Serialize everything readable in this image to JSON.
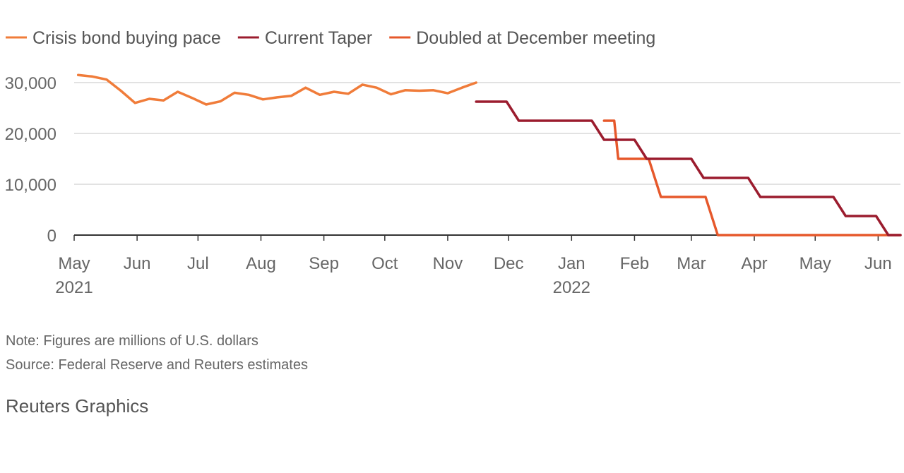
{
  "chart_data": {
    "type": "line",
    "title": "",
    "xlabel": "",
    "ylabel": "",
    "ylim": [
      0,
      30000
    ],
    "yticks": [
      "30,000",
      "20,000",
      "10,000",
      "0"
    ],
    "ytick_values": [
      30000,
      20000,
      10000,
      0
    ],
    "xticks": [
      {
        "month": "May",
        "year": "2021",
        "date": "2021-05-01"
      },
      {
        "month": "Jun",
        "year": "",
        "date": "2021-06-01"
      },
      {
        "month": "Jul",
        "year": "",
        "date": "2021-07-01"
      },
      {
        "month": "Aug",
        "year": "",
        "date": "2021-08-01"
      },
      {
        "month": "Sep",
        "year": "",
        "date": "2021-09-01"
      },
      {
        "month": "Oct",
        "year": "",
        "date": "2021-10-01"
      },
      {
        "month": "Nov",
        "year": "",
        "date": "2021-11-01"
      },
      {
        "month": "Dec",
        "year": "",
        "date": "2021-12-01"
      },
      {
        "month": "Jan",
        "year": "2022",
        "date": "2022-01-01"
      },
      {
        "month": "Feb",
        "year": "",
        "date": "2022-02-01"
      },
      {
        "month": "Mar",
        "year": "",
        "date": "2022-03-01"
      },
      {
        "month": "Apr",
        "year": "",
        "date": "2022-04-01"
      },
      {
        "month": "May",
        "year": "",
        "date": "2022-05-01"
      },
      {
        "month": "Jun",
        "year": "",
        "date": "2022-06-01"
      }
    ],
    "xlim": [
      "2021-05-01",
      "2022-06-12"
    ],
    "grid": true,
    "legend_position": "top-left",
    "series": [
      {
        "name": "Crisis bond buying pace",
        "color": "#f07c3a",
        "step": false,
        "points": [
          [
            "2021-05-03",
            31500
          ],
          [
            "2021-05-10",
            31200
          ],
          [
            "2021-05-17",
            30600
          ],
          [
            "2021-05-24",
            28400
          ],
          [
            "2021-05-31",
            26000
          ],
          [
            "2021-06-07",
            26800
          ],
          [
            "2021-06-14",
            26500
          ],
          [
            "2021-06-21",
            28200
          ],
          [
            "2021-06-28",
            27000
          ],
          [
            "2021-07-05",
            25700
          ],
          [
            "2021-07-12",
            26300
          ],
          [
            "2021-07-19",
            28000
          ],
          [
            "2021-07-26",
            27600
          ],
          [
            "2021-08-02",
            26700
          ],
          [
            "2021-08-09",
            27100
          ],
          [
            "2021-08-16",
            27400
          ],
          [
            "2021-08-23",
            29000
          ],
          [
            "2021-08-30",
            27600
          ],
          [
            "2021-09-06",
            28200
          ],
          [
            "2021-09-13",
            27800
          ],
          [
            "2021-09-20",
            29600
          ],
          [
            "2021-09-27",
            29000
          ],
          [
            "2021-10-04",
            27700
          ],
          [
            "2021-10-11",
            28500
          ],
          [
            "2021-10-18",
            28400
          ],
          [
            "2021-10-25",
            28500
          ],
          [
            "2021-11-01",
            27900
          ],
          [
            "2021-11-08",
            29000
          ],
          [
            "2021-11-15",
            30000
          ]
        ]
      },
      {
        "name": "Current Taper",
        "color": "#9b1c2e",
        "step": true,
        "points": [
          [
            "2021-11-15",
            26250
          ],
          [
            "2021-12-06",
            22500
          ],
          [
            "2022-01-17",
            18750
          ],
          [
            "2022-02-07",
            15000
          ],
          [
            "2022-03-07",
            11250
          ],
          [
            "2022-04-04",
            7500
          ],
          [
            "2022-05-16",
            3750
          ],
          [
            "2022-06-06",
            0
          ],
          [
            "2022-06-12",
            0
          ]
        ]
      },
      {
        "name": "Doubled at December meeting",
        "color": "#e6582b",
        "step": true,
        "points": [
          [
            "2022-01-17",
            22500
          ],
          [
            "2022-01-24",
            15000
          ],
          [
            "2022-02-14",
            7500
          ],
          [
            "2022-03-14",
            0
          ],
          [
            "2022-06-12",
            0
          ]
        ]
      }
    ]
  },
  "notes": {
    "note": "Note: Figures are millions of U.S. dollars",
    "source": "Source: Federal Reserve and Reuters estimates"
  },
  "credit": "Reuters Graphics",
  "colors": {
    "grid": "#d9d9d9",
    "axis": "#333333",
    "tick_text": "#666666"
  }
}
